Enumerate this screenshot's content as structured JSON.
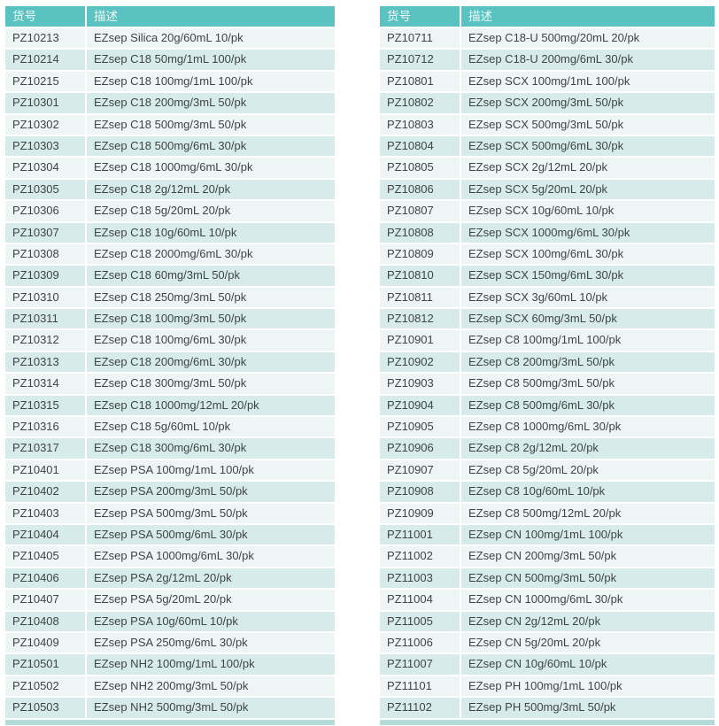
{
  "colors": {
    "header_bg": "#5ac2c0",
    "header_text": "#f0faf9",
    "row_odd_bg": "#edf6f5",
    "row_even_bg": "#d7ecea",
    "row_gap": "#ffffff",
    "cell_text": "#3f4445",
    "footer_sliver": "#b2dbd9",
    "page_bg": "#ffffff"
  },
  "tables": [
    {
      "id": "left",
      "headers": {
        "sku": "货号",
        "description": "描述"
      },
      "rows": [
        [
          "PZ10213",
          "EZsep Silica 20g/60mL 10/pk"
        ],
        [
          "PZ10214",
          "EZsep C18 50mg/1mL 100/pk"
        ],
        [
          "PZ10215",
          "EZsep C18 100mg/1mL 100/pk"
        ],
        [
          "PZ10301",
          "EZsep C18 200mg/3mL 50/pk"
        ],
        [
          "PZ10302",
          "EZsep C18 500mg/3mL 50/pk"
        ],
        [
          "PZ10303",
          "EZsep C18 500mg/6mL 30/pk"
        ],
        [
          "PZ10304",
          "EZsep C18 1000mg/6mL 30/pk"
        ],
        [
          "PZ10305",
          "EZsep C18 2g/12mL 20/pk"
        ],
        [
          "PZ10306",
          "EZsep C18 5g/20mL 20/pk"
        ],
        [
          "PZ10307",
          "EZsep C18 10g/60mL 10/pk"
        ],
        [
          "PZ10308",
          "EZsep C18 2000mg/6mL 30/pk"
        ],
        [
          "PZ10309",
          "EZsep C18 60mg/3mL 50/pk"
        ],
        [
          "PZ10310",
          "EZsep C18 250mg/3mL 50/pk"
        ],
        [
          "PZ10311",
          "EZsep C18 100mg/3mL 50/pk"
        ],
        [
          "PZ10312",
          "EZsep C18 100mg/6mL 30/pk"
        ],
        [
          "PZ10313",
          "EZsep C18 200mg/6mL 30/pk"
        ],
        [
          "PZ10314",
          "EZsep C18 300mg/3mL 50/pk"
        ],
        [
          "PZ10315",
          "EZsep C18 1000mg/12mL 20/pk"
        ],
        [
          "PZ10316",
          "EZsep C18 5g/60mL 10/pk"
        ],
        [
          "PZ10317",
          "EZsep C18 300mg/6mL 30/pk"
        ],
        [
          "PZ10401",
          "EZsep PSA 100mg/1mL 100/pk"
        ],
        [
          "PZ10402",
          "EZsep PSA 200mg/3mL 50/pk"
        ],
        [
          "PZ10403",
          "EZsep PSA 500mg/3mL 50/pk"
        ],
        [
          "PZ10404",
          "EZsep PSA 500mg/6mL 30/pk"
        ],
        [
          "PZ10405",
          "EZsep PSA 1000mg/6mL 30/pk"
        ],
        [
          "PZ10406",
          "EZsep PSA 2g/12mL 20/pk"
        ],
        [
          "PZ10407",
          "EZsep PSA 5g/20mL 20/pk"
        ],
        [
          "PZ10408",
          "EZsep PSA 10g/60mL 10/pk"
        ],
        [
          "PZ10409",
          "EZsep PSA 250mg/6mL 30/pk"
        ],
        [
          "PZ10501",
          "EZsep NH2 100mg/1mL 100/pk"
        ],
        [
          "PZ10502",
          "EZsep NH2 200mg/3mL 50/pk"
        ],
        [
          "PZ10503",
          "EZsep NH2 500mg/3mL 50/pk"
        ]
      ]
    },
    {
      "id": "right",
      "headers": {
        "sku": "货号",
        "description": "描述"
      },
      "rows": [
        [
          "PZ10711",
          "EZsep C18-U 500mg/20mL 20/pk"
        ],
        [
          "PZ10712",
          "EZsep C18-U 200mg/6mL 30/pk"
        ],
        [
          "PZ10801",
          "EZsep SCX 100mg/1mL 100/pk"
        ],
        [
          "PZ10802",
          "EZsep SCX 200mg/3mL 50/pk"
        ],
        [
          "PZ10803",
          "EZsep SCX 500mg/3mL 50/pk"
        ],
        [
          "PZ10804",
          "EZsep SCX 500mg/6mL 30/pk"
        ],
        [
          "PZ10805",
          "EZsep SCX 2g/12mL 20/pk"
        ],
        [
          "PZ10806",
          "EZsep SCX 5g/20mL 20/pk"
        ],
        [
          "PZ10807",
          "EZsep SCX 10g/60mL 10/pk"
        ],
        [
          "PZ10808",
          "EZsep SCX 1000mg/6mL 30/pk"
        ],
        [
          "PZ10809",
          "EZsep SCX 100mg/6mL 30/pk"
        ],
        [
          "PZ10810",
          "EZsep SCX 150mg/6mL 30/pk"
        ],
        [
          "PZ10811",
          "EZsep SCX 3g/60mL 10/pk"
        ],
        [
          "PZ10812",
          "EZsep SCX 60mg/3mL 50/pk"
        ],
        [
          "PZ10901",
          "EZsep C8 100mg/1mL 100/pk"
        ],
        [
          "PZ10902",
          "EZsep C8 200mg/3mL 50/pk"
        ],
        [
          "PZ10903",
          "EZsep C8 500mg/3mL 50/pk"
        ],
        [
          "PZ10904",
          "EZsep C8 500mg/6mL 30/pk"
        ],
        [
          "PZ10905",
          "EZsep C8 1000mg/6mL 30/pk"
        ],
        [
          "PZ10906",
          "EZsep C8 2g/12mL 20/pk"
        ],
        [
          "PZ10907",
          "EZsep C8 5g/20mL 20/pk"
        ],
        [
          "PZ10908",
          "EZsep C8 10g/60mL 10/pk"
        ],
        [
          "PZ10909",
          "EZsep C8 500mg/12mL 20/pk"
        ],
        [
          "PZ11001",
          "EZsep CN 100mg/1mL 100/pk"
        ],
        [
          "PZ11002",
          "EZsep CN 200mg/3mL 50/pk"
        ],
        [
          "PZ11003",
          "EZsep CN 500mg/3mL 50/pk"
        ],
        [
          "PZ11004",
          "EZsep CN 1000mg/6mL 30/pk"
        ],
        [
          "PZ11005",
          "EZsep CN 2g/12mL 20/pk"
        ],
        [
          "PZ11006",
          "EZsep CN 5g/20mL 20/pk"
        ],
        [
          "PZ11007",
          "EZsep CN 10g/60mL 10/pk"
        ],
        [
          "PZ11101",
          "EZsep PH 100mg/1mL 100/pk"
        ],
        [
          "PZ11102",
          "EZsep PH 500mg/3mL 50/pk"
        ]
      ]
    }
  ]
}
